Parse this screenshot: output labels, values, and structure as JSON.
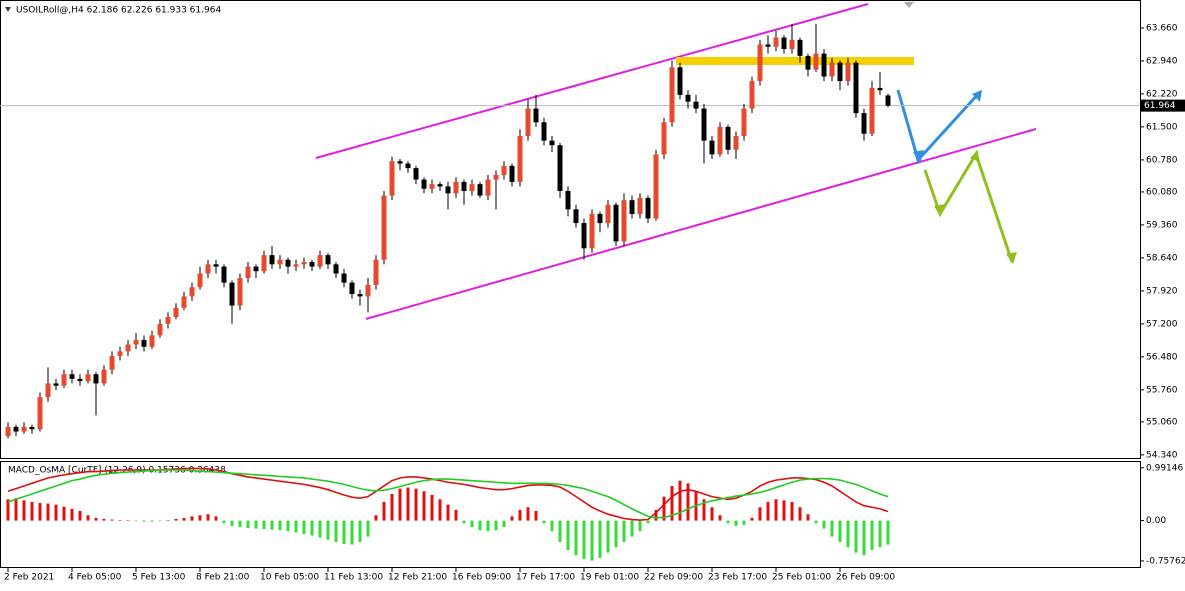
{
  "chart_data": [
    {
      "type": "candlestick",
      "title": "USOILRoll@,H4  62.186 62.226 61.933 61.964",
      "categories": [
        "2 Feb 2021",
        null,
        null,
        null,
        null,
        null,
        null,
        null,
        "4 Feb 05:00",
        null,
        null,
        null,
        null,
        null,
        null,
        null,
        "5 Feb 13:00",
        null,
        null,
        null,
        null,
        null,
        null,
        null,
        "8 Feb 21:00",
        null,
        null,
        null,
        null,
        null,
        null,
        null,
        "10 Feb 05:00",
        null,
        null,
        null,
        null,
        null,
        null,
        null,
        "11 Feb 13:00",
        null,
        null,
        null,
        null,
        null,
        null,
        null,
        "12 Feb 21:00",
        null,
        null,
        null,
        null,
        null,
        null,
        null,
        "16 Feb 09:00",
        null,
        null,
        null,
        null,
        null,
        null,
        null,
        "17 Feb 17:00",
        null,
        null,
        null,
        null,
        null,
        null,
        null,
        "19 Feb 01:00",
        null,
        null,
        null,
        null,
        null,
        null,
        null,
        "22 Feb 09:00",
        null,
        null,
        null,
        null,
        null,
        null,
        null,
        "23 Feb 17:00",
        null,
        null,
        null,
        null,
        null,
        null,
        null,
        "25 Feb 01:00",
        null,
        null,
        null,
        null,
        null,
        null,
        null,
        "26 Feb 09:00",
        null,
        null,
        null,
        null,
        null,
        null
      ],
      "candles": [
        [
          54.75,
          55.05,
          54.7,
          54.95
        ],
        [
          54.95,
          55.0,
          54.75,
          54.85
        ],
        [
          54.85,
          55.05,
          54.8,
          54.95
        ],
        [
          54.95,
          55.0,
          54.8,
          54.9
        ],
        [
          54.9,
          55.7,
          54.85,
          55.6
        ],
        [
          55.6,
          56.25,
          55.5,
          55.9
        ],
        [
          55.9,
          56.0,
          55.75,
          55.85
        ],
        [
          55.85,
          56.2,
          55.8,
          56.1
        ],
        [
          56.1,
          56.2,
          55.9,
          56.0
        ],
        [
          56.0,
          56.1,
          55.85,
          55.95
        ],
        [
          55.95,
          56.2,
          55.9,
          56.1
        ],
        [
          56.1,
          56.15,
          55.2,
          55.9
        ],
        [
          55.9,
          56.3,
          55.85,
          56.2
        ],
        [
          56.2,
          56.6,
          56.1,
          56.5
        ],
        [
          56.5,
          56.7,
          56.4,
          56.6
        ],
        [
          56.6,
          56.85,
          56.5,
          56.75
        ],
        [
          56.75,
          57.0,
          56.65,
          56.85
        ],
        [
          56.85,
          56.95,
          56.6,
          56.7
        ],
        [
          56.7,
          57.05,
          56.65,
          56.95
        ],
        [
          56.95,
          57.3,
          56.9,
          57.2
        ],
        [
          57.2,
          57.45,
          57.1,
          57.35
        ],
        [
          57.35,
          57.65,
          57.3,
          57.55
        ],
        [
          57.55,
          57.9,
          57.5,
          57.8
        ],
        [
          57.8,
          58.1,
          57.7,
          58.0
        ],
        [
          58.0,
          58.45,
          57.95,
          58.3
        ],
        [
          58.3,
          58.6,
          58.2,
          58.5
        ],
        [
          58.5,
          58.6,
          58.3,
          58.45
        ],
        [
          58.45,
          58.5,
          58.0,
          58.1
        ],
        [
          58.1,
          58.15,
          57.2,
          57.6
        ],
        [
          57.6,
          58.3,
          57.5,
          58.2
        ],
        [
          58.2,
          58.55,
          58.1,
          58.45
        ],
        [
          58.45,
          58.5,
          58.2,
          58.35
        ],
        [
          58.35,
          58.8,
          58.3,
          58.7
        ],
        [
          58.7,
          58.9,
          58.4,
          58.5
        ],
        [
          58.5,
          58.7,
          58.4,
          58.6
        ],
        [
          58.6,
          58.65,
          58.3,
          58.45
        ],
        [
          58.45,
          58.6,
          58.35,
          58.5
        ],
        [
          58.5,
          58.65,
          58.4,
          58.55
        ],
        [
          58.55,
          58.6,
          58.35,
          58.45
        ],
        [
          58.45,
          58.8,
          58.4,
          58.7
        ],
        [
          58.7,
          58.75,
          58.4,
          58.5
        ],
        [
          58.5,
          58.55,
          58.2,
          58.3
        ],
        [
          58.3,
          58.4,
          58.0,
          58.1
        ],
        [
          58.1,
          58.15,
          57.75,
          57.85
        ],
        [
          57.85,
          57.95,
          57.6,
          57.8
        ],
        [
          57.8,
          58.2,
          57.45,
          58.05
        ],
        [
          58.05,
          58.7,
          57.95,
          58.6
        ],
        [
          58.6,
          60.1,
          58.5,
          60.0
        ],
        [
          60.0,
          60.85,
          59.9,
          60.75
        ],
        [
          60.75,
          60.8,
          60.55,
          60.7
        ],
        [
          60.7,
          60.75,
          60.5,
          60.6
        ],
        [
          60.6,
          60.65,
          60.25,
          60.35
        ],
        [
          60.35,
          60.4,
          60.05,
          60.15
        ],
        [
          60.15,
          60.35,
          60.05,
          60.25
        ],
        [
          60.25,
          60.3,
          60.1,
          60.2
        ],
        [
          60.2,
          60.3,
          59.7,
          60.05
        ],
        [
          60.05,
          60.4,
          59.95,
          60.3
        ],
        [
          60.3,
          60.35,
          59.8,
          60.1
        ],
        [
          60.1,
          60.35,
          60.0,
          60.25
        ],
        [
          60.25,
          60.3,
          59.95,
          60.0
        ],
        [
          60.0,
          60.45,
          59.9,
          60.35
        ],
        [
          60.35,
          60.55,
          59.7,
          60.45
        ],
        [
          60.45,
          60.75,
          60.35,
          60.65
        ],
        [
          60.65,
          60.7,
          60.2,
          60.3
        ],
        [
          60.3,
          61.45,
          60.2,
          61.3
        ],
        [
          61.3,
          62.1,
          61.2,
          61.9
        ],
        [
          61.9,
          62.2,
          61.5,
          61.6
        ],
        [
          61.6,
          61.7,
          61.1,
          61.2
        ],
        [
          61.2,
          61.3,
          60.95,
          61.1
        ],
        [
          61.1,
          61.15,
          59.95,
          60.1
        ],
        [
          60.1,
          60.2,
          59.55,
          59.7
        ],
        [
          59.7,
          59.8,
          59.3,
          59.4
        ],
        [
          59.4,
          59.5,
          58.6,
          58.85
        ],
        [
          58.85,
          59.7,
          58.75,
          59.6
        ],
        [
          59.6,
          59.65,
          59.2,
          59.4
        ],
        [
          59.4,
          59.9,
          59.3,
          59.8
        ],
        [
          59.8,
          59.85,
          58.9,
          59.0
        ],
        [
          59.0,
          60.05,
          58.9,
          59.9
        ],
        [
          59.9,
          60.0,
          59.5,
          59.6
        ],
        [
          59.6,
          60.05,
          59.5,
          59.95
        ],
        [
          59.95,
          60.0,
          59.4,
          59.5
        ],
        [
          59.5,
          61.0,
          59.45,
          60.9
        ],
        [
          60.9,
          61.7,
          60.8,
          61.6
        ],
        [
          61.6,
          62.95,
          61.5,
          62.8
        ],
        [
          62.8,
          62.9,
          62.1,
          62.2
        ],
        [
          62.2,
          62.3,
          61.9,
          62.05
        ],
        [
          62.05,
          62.2,
          61.8,
          61.9
        ],
        [
          61.9,
          62.0,
          60.7,
          61.2
        ],
        [
          61.2,
          61.3,
          60.8,
          60.9
        ],
        [
          60.9,
          61.6,
          60.85,
          61.5
        ],
        [
          61.5,
          61.55,
          60.9,
          61.0
        ],
        [
          61.0,
          61.4,
          60.8,
          61.3
        ],
        [
          61.3,
          62.0,
          61.2,
          61.9
        ],
        [
          61.9,
          62.6,
          61.8,
          62.5
        ],
        [
          62.5,
          63.4,
          62.4,
          63.3
        ],
        [
          63.3,
          63.5,
          63.1,
          63.25
        ],
        [
          63.25,
          63.6,
          63.15,
          63.45
        ],
        [
          63.45,
          63.5,
          63.1,
          63.2
        ],
        [
          63.2,
          63.75,
          63.1,
          63.4
        ],
        [
          63.4,
          63.45,
          62.9,
          63.05
        ],
        [
          63.05,
          63.1,
          62.6,
          62.75
        ],
        [
          62.75,
          63.75,
          62.7,
          63.1
        ],
        [
          63.1,
          63.2,
          62.5,
          62.6
        ],
        [
          62.6,
          63.0,
          62.5,
          62.9
        ],
        [
          62.9,
          62.95,
          62.3,
          62.5
        ],
        [
          62.5,
          63.0,
          62.4,
          62.9
        ],
        [
          62.9,
          62.95,
          61.7,
          61.8
        ],
        [
          61.8,
          61.9,
          61.2,
          61.35
        ],
        [
          61.35,
          62.5,
          61.3,
          62.35
        ],
        [
          62.35,
          62.7,
          62.2,
          62.3
        ],
        [
          62.186,
          62.226,
          61.933,
          61.964
        ]
      ],
      "colors": {
        "up": "#e8492c",
        "down": "#000000"
      },
      "ylim": [
        54.25,
        64.27
      ],
      "yticks": [
        {
          "value": 63.66,
          "label": "63.660"
        },
        {
          "value": 62.94,
          "label": "62.940"
        },
        {
          "value": 62.22,
          "label": "62.220"
        },
        {
          "value": 61.5,
          "label": "61.500"
        },
        {
          "value": 60.78,
          "label": "60.780"
        },
        {
          "value": 60.08,
          "label": "60.080"
        },
        {
          "value": 59.36,
          "label": "59.360"
        },
        {
          "value": 58.64,
          "label": "58.640"
        },
        {
          "value": 57.92,
          "label": "57.920"
        },
        {
          "value": 57.2,
          "label": "57.200"
        },
        {
          "value": 56.48,
          "label": "56.480"
        },
        {
          "value": 55.76,
          "label": "55.760"
        },
        {
          "value": 55.06,
          "label": "55.060"
        },
        {
          "value": 54.34,
          "label": "54.340"
        }
      ],
      "last_price": {
        "value": 61.964,
        "label": "61.964"
      }
    },
    {
      "type": "macd",
      "title": "MACD_OsMA [CurTF] (12,26,9) 0.15736 0.36438",
      "histogram": [
        0.4,
        0.42,
        0.38,
        0.35,
        0.33,
        0.32,
        0.3,
        0.26,
        0.22,
        0.18,
        0.1,
        0.05,
        0.03,
        0.02,
        0.01,
        0.01,
        -0.01,
        -0.02,
        -0.02,
        -0.01,
        0.01,
        0.03,
        0.05,
        0.08,
        0.1,
        0.12,
        0.08,
        -0.05,
        -0.1,
        -0.12,
        -0.14,
        -0.15,
        -0.16,
        -0.17,
        -0.18,
        -0.2,
        -0.22,
        -0.25,
        -0.28,
        -0.32,
        -0.36,
        -0.4,
        -0.44,
        -0.45,
        -0.4,
        -0.3,
        0.1,
        0.35,
        0.5,
        0.6,
        0.62,
        0.6,
        0.55,
        0.48,
        0.4,
        0.3,
        0.2,
        -0.05,
        -0.12,
        -0.18,
        -0.2,
        -0.18,
        -0.12,
        0.08,
        0.2,
        0.25,
        0.18,
        -0.05,
        -0.2,
        -0.4,
        -0.55,
        -0.65,
        -0.72,
        -0.75,
        -0.7,
        -0.6,
        -0.5,
        -0.4,
        -0.3,
        -0.2,
        -0.05,
        0.2,
        0.45,
        0.65,
        0.75,
        0.7,
        0.55,
        0.4,
        0.25,
        0.1,
        -0.05,
        -0.1,
        -0.08,
        0.05,
        0.25,
        0.35,
        0.4,
        0.38,
        0.35,
        0.25,
        0.12,
        -0.05,
        -0.15,
        -0.3,
        -0.4,
        -0.5,
        -0.6,
        -0.65,
        -0.55,
        -0.5,
        -0.45
      ],
      "colors": {
        "positive": "#e01010",
        "negative": "#33dd33"
      },
      "series": [
        {
          "color": "#dd1111",
          "values": [
            0.55,
            0.6,
            0.65,
            0.7,
            0.75,
            0.8,
            0.83,
            0.86,
            0.88,
            0.9,
            0.92,
            0.92,
            0.93,
            0.94,
            0.95,
            0.95,
            0.95,
            0.95,
            0.95,
            0.95,
            0.96,
            0.97,
            0.98,
            0.98,
            0.98,
            0.97,
            0.95,
            0.92,
            0.88,
            0.85,
            0.82,
            0.8,
            0.78,
            0.76,
            0.74,
            0.72,
            0.7,
            0.68,
            0.65,
            0.62,
            0.58,
            0.53,
            0.48,
            0.44,
            0.42,
            0.45,
            0.55,
            0.65,
            0.75,
            0.8,
            0.82,
            0.82,
            0.8,
            0.78,
            0.75,
            0.72,
            0.7,
            0.68,
            0.65,
            0.62,
            0.6,
            0.58,
            0.58,
            0.6,
            0.63,
            0.66,
            0.67,
            0.67,
            0.66,
            0.63,
            0.55,
            0.45,
            0.35,
            0.25,
            0.18,
            0.12,
            0.08,
            0.04,
            0.02,
            0.01,
            0.02,
            0.15,
            0.3,
            0.45,
            0.55,
            0.58,
            0.55,
            0.5,
            0.45,
            0.42,
            0.4,
            0.42,
            0.48,
            0.55,
            0.65,
            0.72,
            0.76,
            0.78,
            0.8,
            0.8,
            0.79,
            0.77,
            0.72,
            0.65,
            0.55,
            0.45,
            0.35,
            0.28,
            0.25,
            0.22,
            0.17
          ]
        },
        {
          "color": "#22cc22",
          "values": [
            0.35,
            0.4,
            0.45,
            0.5,
            0.55,
            0.6,
            0.65,
            0.7,
            0.75,
            0.78,
            0.82,
            0.85,
            0.87,
            0.89,
            0.9,
            0.91,
            0.92,
            0.93,
            0.94,
            0.95,
            0.95,
            0.95,
            0.95,
            0.94,
            0.93,
            0.92,
            0.91,
            0.9,
            0.89,
            0.88,
            0.87,
            0.86,
            0.85,
            0.84,
            0.83,
            0.82,
            0.81,
            0.8,
            0.78,
            0.76,
            0.74,
            0.71,
            0.68,
            0.64,
            0.6,
            0.57,
            0.56,
            0.57,
            0.6,
            0.64,
            0.68,
            0.72,
            0.75,
            0.77,
            0.78,
            0.78,
            0.77,
            0.76,
            0.75,
            0.74,
            0.73,
            0.72,
            0.71,
            0.7,
            0.7,
            0.7,
            0.7,
            0.7,
            0.69,
            0.68,
            0.66,
            0.63,
            0.6,
            0.55,
            0.5,
            0.45,
            0.38,
            0.3,
            0.22,
            0.15,
            0.08,
            0.05,
            0.06,
            0.1,
            0.15,
            0.22,
            0.28,
            0.33,
            0.37,
            0.4,
            0.43,
            0.46,
            0.48,
            0.5,
            0.53,
            0.57,
            0.62,
            0.67,
            0.72,
            0.76,
            0.78,
            0.79,
            0.79,
            0.78,
            0.76,
            0.72,
            0.68,
            0.62,
            0.56,
            0.5,
            0.45
          ]
        }
      ],
      "ylim": [
        -0.89,
        1.1
      ],
      "yticks": [
        {
          "value": 0.99146,
          "label": "0.99146"
        },
        {
          "value": 0,
          "label": "0.00"
        },
        {
          "value": -0.75762,
          "label": "-0.75762"
        }
      ]
    }
  ]
}
